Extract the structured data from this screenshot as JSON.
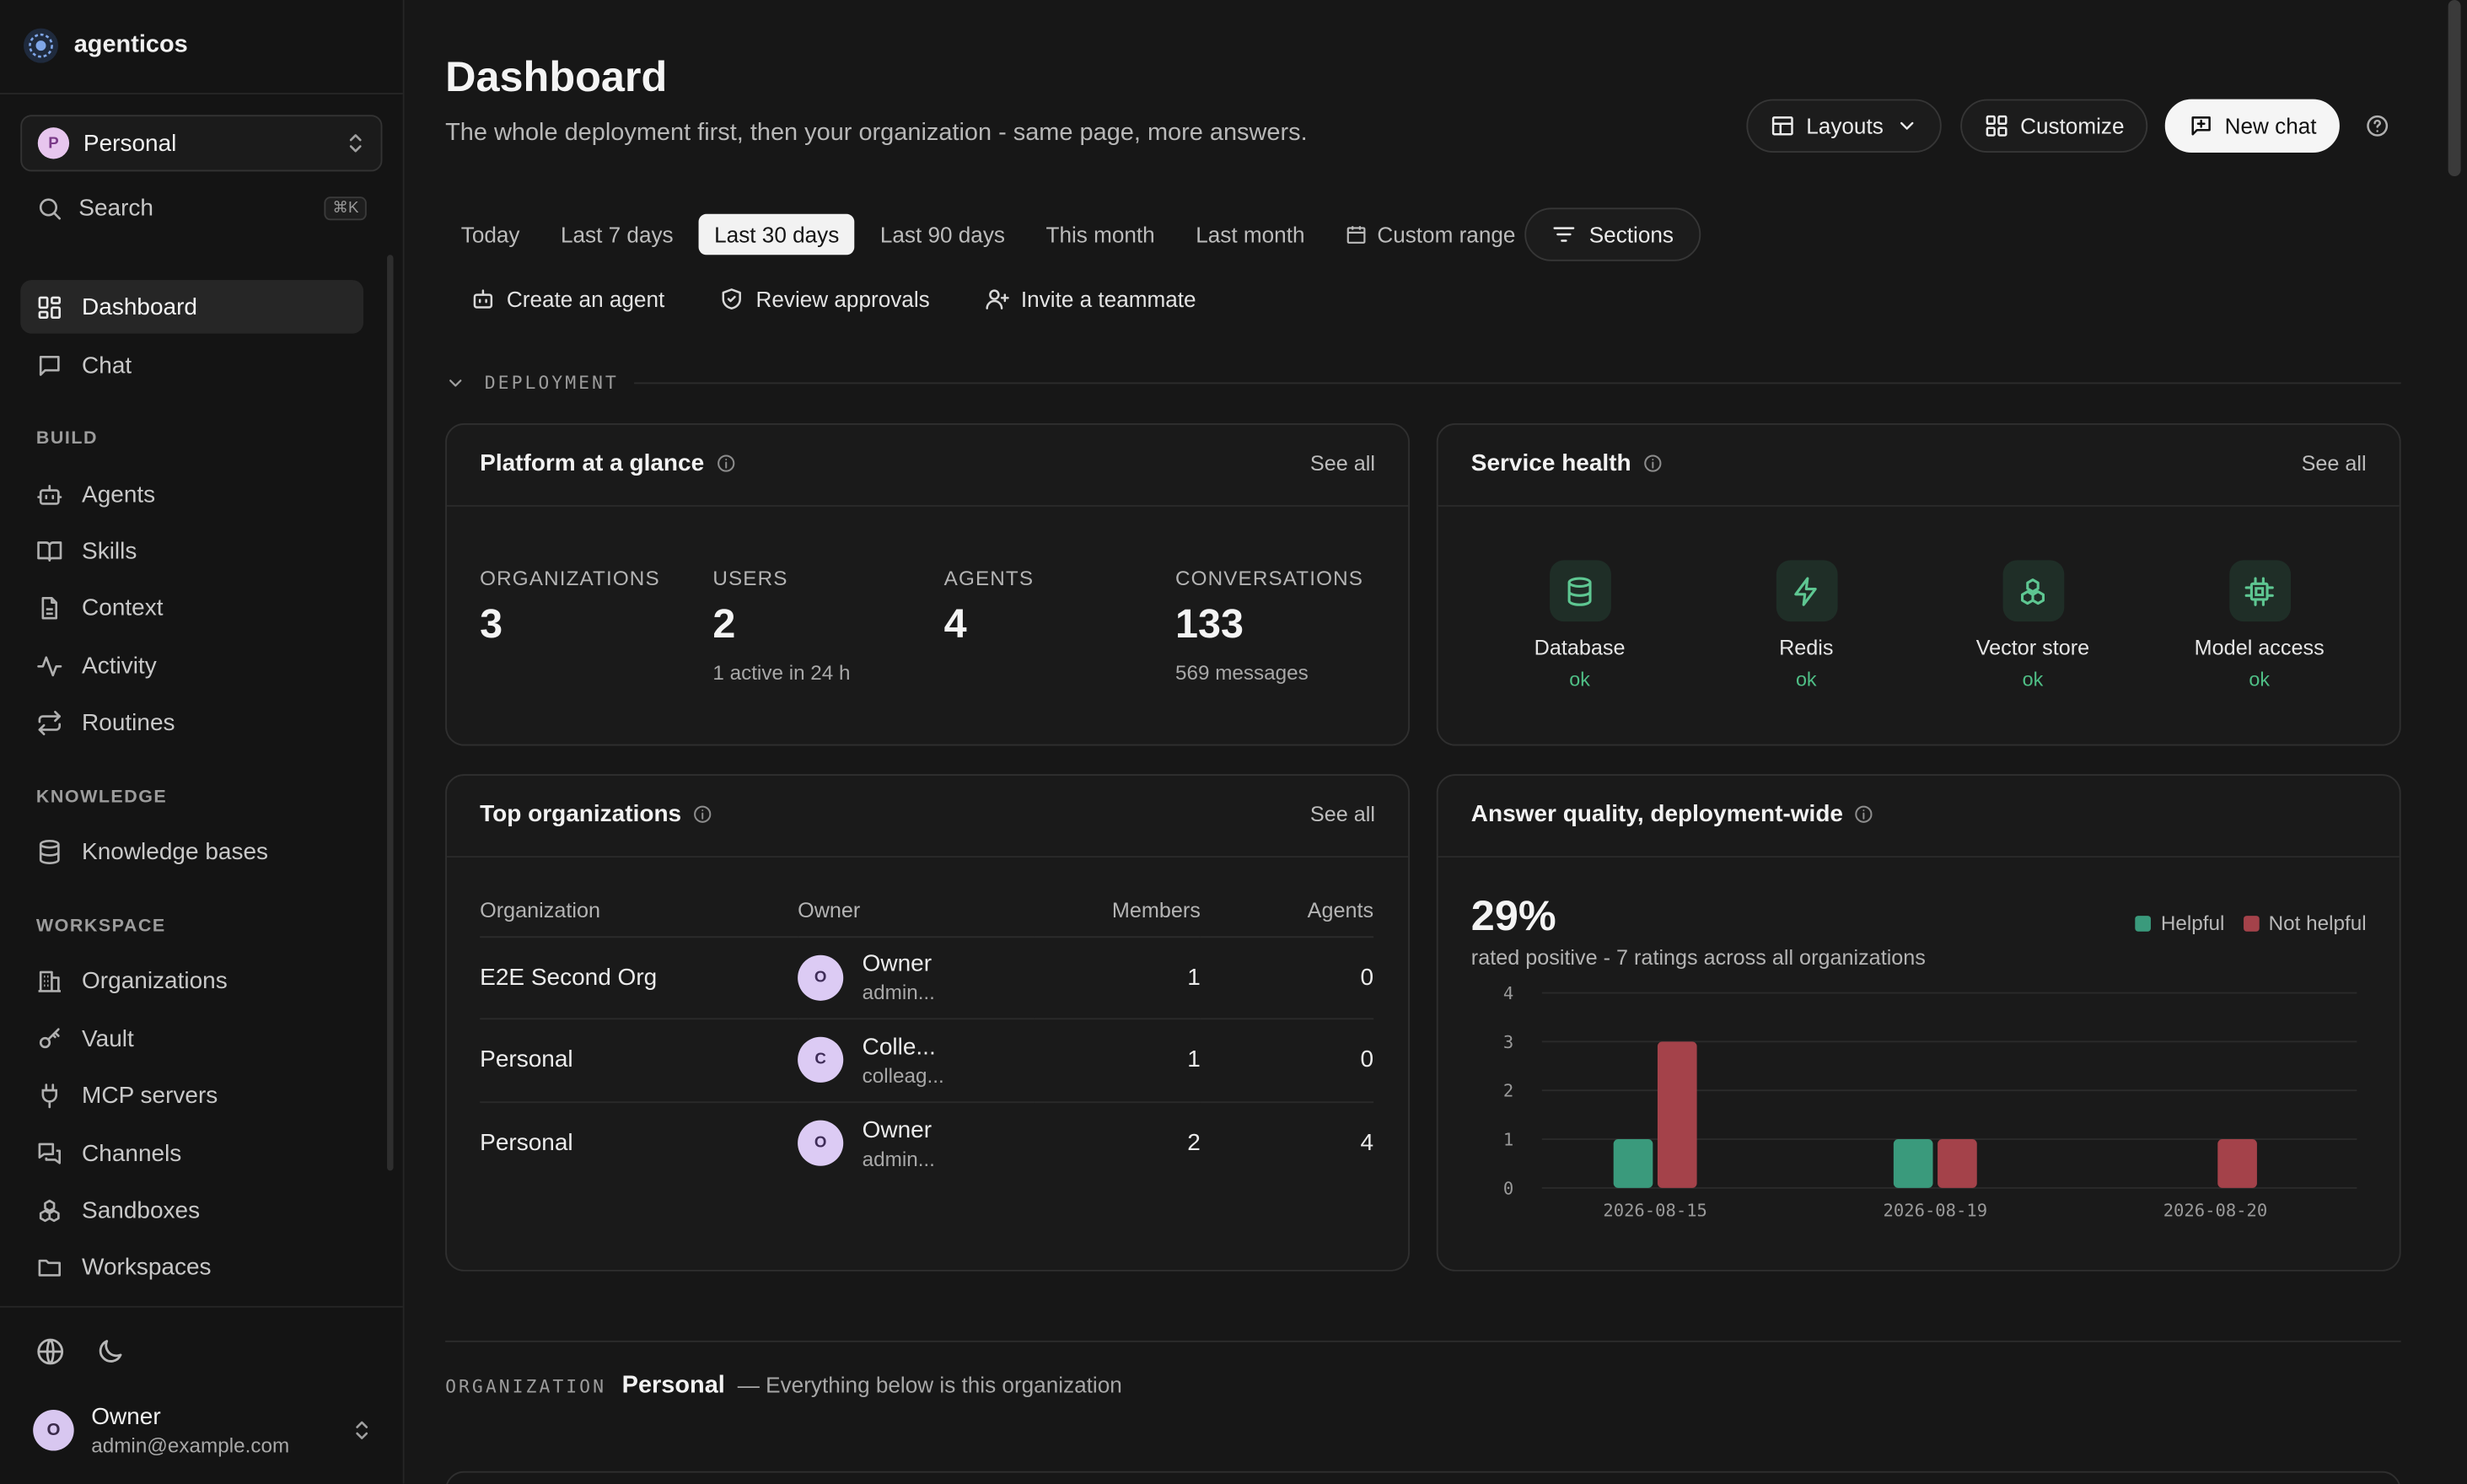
{
  "brand": {
    "name": "agenticos"
  },
  "org_switcher": {
    "initial": "P",
    "name": "Personal"
  },
  "search": {
    "label": "Search",
    "shortcut": "⌘K"
  },
  "nav": {
    "dashboard": "Dashboard",
    "chat": "Chat",
    "build_title": "BUILD",
    "agents": "Agents",
    "skills": "Skills",
    "context": "Context",
    "activity": "Activity",
    "routines": "Routines",
    "knowledge_title": "KNOWLEDGE",
    "knowledge_bases": "Knowledge bases",
    "workspace_title": "WORKSPACE",
    "organizations": "Organizations",
    "vault": "Vault",
    "mcp_servers": "MCP servers",
    "channels": "Channels",
    "sandboxes": "Sandboxes",
    "workspaces": "Workspaces"
  },
  "user": {
    "initial": "O",
    "name": "Owner",
    "email": "admin@example.com"
  },
  "header": {
    "title": "Dashboard",
    "subtitle": "The whole deployment first, then your organization - same page, more answers.",
    "layouts": "Layouts",
    "customize": "Customize",
    "new_chat": "New chat"
  },
  "ranges": {
    "today": "Today",
    "last7": "Last 7 days",
    "last30": "Last 30 days",
    "last90": "Last 90 days",
    "this_month": "This month",
    "last_month": "Last month",
    "custom": "Custom range",
    "sections": "Sections"
  },
  "quick_actions": {
    "create_agent": "Create an agent",
    "review_approvals": "Review approvals",
    "invite": "Invite a teammate"
  },
  "deployment_label": "DEPLOYMENT",
  "platform": {
    "title": "Platform at a glance",
    "see_all": "See all",
    "organizations_label": "ORGANIZATIONS",
    "organizations_value": "3",
    "users_label": "USERS",
    "users_value": "2",
    "users_sub": "1 active in 24 h",
    "agents_label": "AGENTS",
    "agents_value": "4",
    "conversations_label": "CONVERSATIONS",
    "conversations_value": "133",
    "conversations_sub": "569 messages"
  },
  "service_health": {
    "title": "Service health",
    "see_all": "See all",
    "services": [
      {
        "name": "Database",
        "status": "ok",
        "icon": "database-icon"
      },
      {
        "name": "Redis",
        "status": "ok",
        "icon": "lightning-icon"
      },
      {
        "name": "Vector store",
        "status": "ok",
        "icon": "vector-store-icon"
      },
      {
        "name": "Model access",
        "status": "ok",
        "icon": "chip-icon"
      }
    ],
    "status_color": "#4fbf86"
  },
  "top_orgs": {
    "title": "Top organizations",
    "see_all": "See all",
    "columns": {
      "organization": "Organization",
      "owner": "Owner",
      "members": "Members",
      "agents": "Agents"
    },
    "rows": [
      {
        "org": "E2E Second Org",
        "owner_initial": "O",
        "owner_name": "Owner",
        "owner_email": "admin...",
        "members": "1",
        "agents": "0"
      },
      {
        "org": "Personal",
        "owner_initial": "C",
        "owner_name": "Colle...",
        "owner_email": "colleag...",
        "members": "1",
        "agents": "0"
      },
      {
        "org": "Personal",
        "owner_initial": "O",
        "owner_name": "Owner",
        "owner_email": "admin...",
        "members": "2",
        "agents": "4"
      }
    ]
  },
  "answer_quality": {
    "title": "Answer quality, deployment-wide",
    "percent": "29%",
    "subtitle": "rated positive - 7 ratings across all organizations",
    "legend_helpful": "Helpful",
    "legend_not_helpful": "Not helpful"
  },
  "chart_data": {
    "type": "bar",
    "categories": [
      "2026-08-15",
      "2026-08-19",
      "2026-08-20"
    ],
    "series": [
      {
        "name": "Helpful",
        "values": [
          1,
          1,
          0
        ],
        "color": "#3a9a7c"
      },
      {
        "name": "Not helpful",
        "values": [
          3,
          1,
          1
        ],
        "color": "#a4424a"
      }
    ],
    "y_ticks": [
      "0",
      "1",
      "2",
      "3",
      "4"
    ],
    "ylim": [
      0,
      4
    ],
    "grid": true
  },
  "organization_section": {
    "label": "ORGANIZATION",
    "name": "Personal",
    "description": "— Everything below is this organization"
  }
}
